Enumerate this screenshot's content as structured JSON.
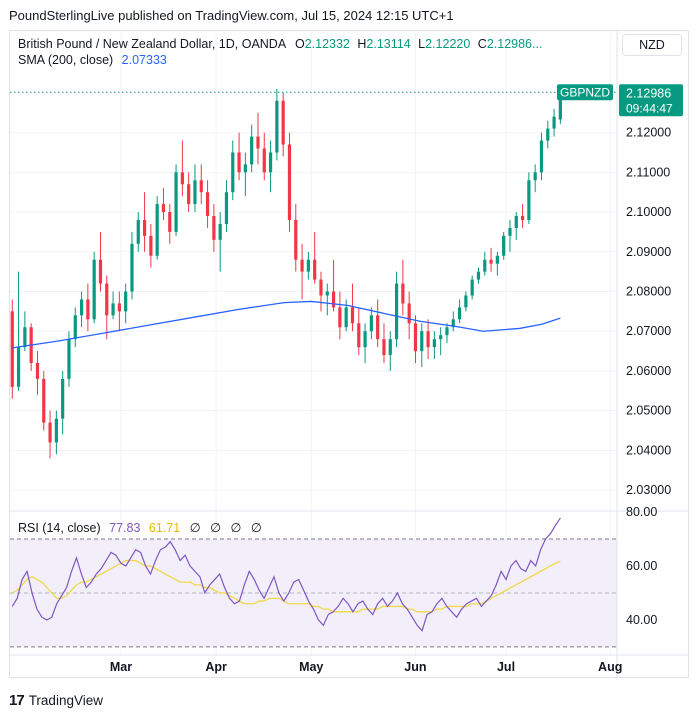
{
  "header": {
    "publisher_line": "PoundSterlingLive published on TradingView.com, Jul 15, 2024 12:15 UTC+1"
  },
  "legend": {
    "instrument": "British Pound / New Zealand Dollar, 1D, OANDA",
    "ohlc_open_label": "O",
    "ohlc_open": "2.12332",
    "ohlc_high_label": "H",
    "ohlc_high": "2.13114",
    "ohlc_low_label": "L",
    "ohlc_low": "2.12220",
    "ohlc_close_label": "C",
    "ohlc_close": "2.12986...",
    "sma_label": "SMA (200, close)",
    "sma_value": "2.07333",
    "rsi_label": "RSI (14, close)",
    "rsi_value": "77.83",
    "rsi_ma_value": "61.71",
    "rsi_empty": [
      "∅",
      "∅",
      "∅",
      "∅"
    ]
  },
  "currency_button": "NZD",
  "price_tag": {
    "symbol": "GBPNZD",
    "price": "2.12986",
    "countdown": "09:44:47"
  },
  "footer": {
    "brand": "TradingView"
  },
  "colors": {
    "up": "#089981",
    "down": "#f23645",
    "sma": "#2962ff",
    "rsi": "#7e57c2",
    "rsi_ma": "#f0d84a",
    "rsi_band": "#f3effa"
  },
  "chart_data": [
    {
      "type": "candlestick",
      "symbol": "GBPNZD",
      "ylim": [
        2.025,
        2.135
      ],
      "y_ticks": [
        "2.03000",
        "2.04000",
        "2.05000",
        "2.06000",
        "2.07000",
        "2.08000",
        "2.09000",
        "2.10000",
        "2.11000",
        "2.12000"
      ],
      "x_ticks": [
        {
          "label": "Mar",
          "index": 24
        },
        {
          "label": "Apr",
          "index": 45
        },
        {
          "label": "May",
          "index": 66
        },
        {
          "label": "Jun",
          "index": 89
        },
        {
          "label": "Jul",
          "index": 109
        },
        {
          "label": "Aug",
          "index": 132
        }
      ],
      "n_slots": 134,
      "ohlc": [
        [
          2.075,
          2.078,
          2.053,
          2.056
        ],
        [
          2.056,
          2.085,
          2.055,
          2.066
        ],
        [
          2.066,
          2.075,
          2.065,
          2.071
        ],
        [
          2.071,
          2.072,
          2.06,
          2.062
        ],
        [
          2.062,
          2.065,
          2.054,
          2.058
        ],
        [
          2.058,
          2.06,
          2.045,
          2.047
        ],
        [
          2.047,
          2.05,
          2.038,
          2.042
        ],
        [
          2.042,
          2.05,
          2.039,
          2.048
        ],
        [
          2.048,
          2.06,
          2.044,
          2.058
        ],
        [
          2.058,
          2.07,
          2.056,
          2.068
        ],
        [
          2.068,
          2.076,
          2.066,
          2.074
        ],
        [
          2.074,
          2.08,
          2.071,
          2.078
        ],
        [
          2.078,
          2.082,
          2.07,
          2.073
        ],
        [
          2.073,
          2.09,
          2.072,
          2.088
        ],
        [
          2.088,
          2.095,
          2.08,
          2.082
        ],
        [
          2.082,
          2.084,
          2.068,
          2.074
        ],
        [
          2.074,
          2.08,
          2.073,
          2.077
        ],
        [
          2.077,
          2.08,
          2.07,
          2.075
        ],
        [
          2.075,
          2.082,
          2.072,
          2.08
        ],
        [
          2.08,
          2.095,
          2.078,
          2.092
        ],
        [
          2.092,
          2.1,
          2.09,
          2.098
        ],
        [
          2.098,
          2.105,
          2.09,
          2.094
        ],
        [
          2.094,
          2.097,
          2.086,
          2.089
        ],
        [
          2.089,
          2.104,
          2.088,
          2.102
        ],
        [
          2.102,
          2.106,
          2.098,
          2.1
        ],
        [
          2.1,
          2.102,
          2.092,
          2.095
        ],
        [
          2.095,
          2.112,
          2.094,
          2.11
        ],
        [
          2.11,
          2.118,
          2.104,
          2.107
        ],
        [
          2.107,
          2.11,
          2.1,
          2.102
        ],
        [
          2.102,
          2.112,
          2.1,
          2.108
        ],
        [
          2.108,
          2.112,
          2.102,
          2.105
        ],
        [
          2.105,
          2.108,
          2.096,
          2.099
        ],
        [
          2.099,
          2.102,
          2.09,
          2.093
        ],
        [
          2.093,
          2.1,
          2.085,
          2.097
        ],
        [
          2.097,
          2.108,
          2.095,
          2.105
        ],
        [
          2.105,
          2.118,
          2.103,
          2.115
        ],
        [
          2.115,
          2.12,
          2.108,
          2.11
        ],
        [
          2.11,
          2.115,
          2.104,
          2.112
        ],
        [
          2.112,
          2.122,
          2.11,
          2.119
        ],
        [
          2.119,
          2.125,
          2.112,
          2.116
        ],
        [
          2.116,
          2.12,
          2.108,
          2.11
        ],
        [
          2.11,
          2.118,
          2.105,
          2.115
        ],
        [
          2.115,
          2.131,
          2.113,
          2.128
        ],
        [
          2.128,
          2.13,
          2.114,
          2.117
        ],
        [
          2.117,
          2.12,
          2.095,
          2.098
        ],
        [
          2.098,
          2.102,
          2.085,
          2.088
        ],
        [
          2.088,
          2.092,
          2.078,
          2.085
        ],
        [
          2.085,
          2.09,
          2.083,
          2.088
        ],
        [
          2.088,
          2.095,
          2.082,
          2.083
        ],
        [
          2.083,
          2.085,
          2.075,
          2.079
        ],
        [
          2.079,
          2.082,
          2.074,
          2.08
        ],
        [
          2.08,
          2.088,
          2.075,
          2.076
        ],
        [
          2.076,
          2.08,
          2.068,
          2.071
        ],
        [
          2.071,
          2.078,
          2.07,
          2.076
        ],
        [
          2.076,
          2.082,
          2.07,
          2.072
        ],
        [
          2.072,
          2.076,
          2.064,
          2.066
        ],
        [
          2.066,
          2.072,
          2.062,
          2.07
        ],
        [
          2.07,
          2.076,
          2.068,
          2.074
        ],
        [
          2.074,
          2.078,
          2.066,
          2.068
        ],
        [
          2.068,
          2.072,
          2.062,
          2.064
        ],
        [
          2.064,
          2.07,
          2.06,
          2.068
        ],
        [
          2.068,
          2.085,
          2.066,
          2.082
        ],
        [
          2.082,
          2.088,
          2.074,
          2.077
        ],
        [
          2.077,
          2.08,
          2.068,
          2.072
        ],
        [
          2.072,
          2.074,
          2.062,
          2.065
        ],
        [
          2.065,
          2.072,
          2.061,
          2.07
        ],
        [
          2.07,
          2.073,
          2.063,
          2.066
        ],
        [
          2.066,
          2.07,
          2.063,
          2.068
        ],
        [
          2.068,
          2.071,
          2.064,
          2.069
        ],
        [
          2.069,
          2.072,
          2.067,
          2.071
        ],
        [
          2.071,
          2.075,
          2.07,
          2.073
        ],
        [
          2.073,
          2.078,
          2.072,
          2.076
        ],
        [
          2.076,
          2.08,
          2.075,
          2.079
        ],
        [
          2.079,
          2.084,
          2.078,
          2.083
        ],
        [
          2.083,
          2.086,
          2.082,
          2.085
        ],
        [
          2.085,
          2.09,
          2.084,
          2.088
        ],
        [
          2.088,
          2.091,
          2.085,
          2.087
        ],
        [
          2.087,
          2.09,
          2.084,
          2.089
        ],
        [
          2.089,
          2.095,
          2.088,
          2.094
        ],
        [
          2.094,
          2.098,
          2.09,
          2.096
        ],
        [
          2.096,
          2.1,
          2.093,
          2.099
        ],
        [
          2.099,
          2.102,
          2.096,
          2.098
        ],
        [
          2.098,
          2.11,
          2.097,
          2.108
        ],
        [
          2.108,
          2.112,
          2.105,
          2.11
        ],
        [
          2.11,
          2.12,
          2.108,
          2.118
        ],
        [
          2.118,
          2.123,
          2.116,
          2.121
        ],
        [
          2.121,
          2.126,
          2.119,
          2.124
        ],
        [
          2.1233,
          2.1311,
          2.1222,
          2.1299
        ]
      ],
      "sma_200": [
        [
          0,
          2.0658
        ],
        [
          10,
          2.0675
        ],
        [
          20,
          2.0695
        ],
        [
          30,
          2.0715
        ],
        [
          40,
          2.0735
        ],
        [
          50,
          2.0755
        ],
        [
          60,
          2.0772
        ],
        [
          66,
          2.0775
        ],
        [
          74,
          2.0765
        ],
        [
          82,
          2.0745
        ],
        [
          90,
          2.0725
        ],
        [
          98,
          2.0712
        ],
        [
          104,
          2.07
        ],
        [
          112,
          2.0707
        ],
        [
          117,
          2.0718
        ],
        [
          121,
          2.0733
        ]
      ]
    },
    {
      "type": "line",
      "name": "RSI (14, close)",
      "ylim": [
        27,
        80
      ],
      "y_ticks": [
        "80.00",
        "60.00",
        "40.00"
      ],
      "band": [
        30,
        70
      ],
      "midline": 50,
      "rsi": [
        45,
        48,
        55,
        58,
        50,
        44,
        41,
        40,
        41,
        46,
        49,
        52,
        58,
        63,
        57,
        52,
        54,
        57,
        59,
        62,
        65,
        64,
        61,
        60,
        63,
        66,
        65,
        60,
        57,
        62,
        66,
        67,
        69,
        66,
        62,
        64,
        60,
        58,
        56,
        50,
        53,
        55,
        57,
        52,
        48,
        46,
        47,
        53,
        58,
        55,
        51,
        48,
        52,
        56,
        50,
        47,
        50,
        54,
        55,
        51,
        47,
        44,
        40,
        38,
        42,
        43,
        45,
        48,
        46,
        43,
        46,
        47,
        44,
        42,
        46,
        48,
        45,
        47,
        50,
        46,
        44,
        41,
        38,
        36,
        42,
        43,
        46,
        48,
        45,
        43,
        41,
        44,
        46,
        47,
        48,
        45,
        47,
        49,
        53,
        58,
        55,
        60,
        62,
        59,
        58,
        62,
        60,
        66,
        70,
        72,
        75,
        77.8
      ],
      "ma": [
        50,
        51,
        53,
        55,
        56,
        55,
        54,
        52,
        50,
        48,
        48,
        49,
        51,
        53,
        54,
        54,
        55,
        56,
        57,
        58,
        59,
        60,
        61,
        62,
        62,
        62,
        61,
        60,
        60,
        59,
        58,
        57,
        56,
        55,
        54,
        54,
        54,
        53,
        53,
        52,
        52,
        51,
        50,
        50,
        49,
        48,
        47,
        46,
        46,
        46,
        47,
        47,
        48,
        48,
        48,
        47,
        46,
        46,
        46,
        46,
        46,
        45,
        45,
        44,
        44,
        43,
        43,
        43,
        43,
        43,
        43,
        44,
        44,
        44,
        44,
        45,
        45,
        45,
        45,
        45,
        44,
        44,
        43,
        43,
        43,
        43,
        44,
        44,
        45,
        45,
        45,
        45,
        45,
        46,
        46,
        46,
        47,
        48,
        49,
        50,
        51,
        52,
        53,
        54,
        55,
        56,
        57,
        58,
        59,
        60,
        61,
        61.7
      ]
    }
  ]
}
